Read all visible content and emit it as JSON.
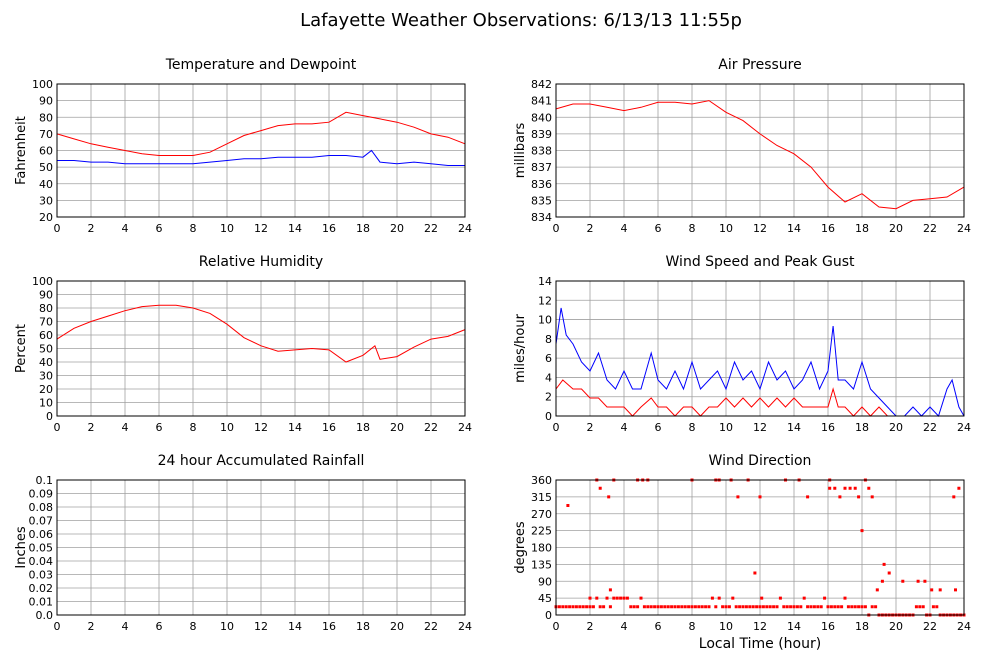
{
  "page": {
    "title": "Lafayette Weather Observations: 6/13/13 11:55p",
    "x_axis_label": "Local Time (hour)"
  },
  "colors": {
    "red": "#ff0000",
    "blue": "#0000ff",
    "grid": "#a0a0a0"
  },
  "chart_data": [
    {
      "id": "temperature",
      "type": "line",
      "title": "Temperature and Dewpoint",
      "ylabel": "Fahrenheit",
      "xlim": [
        0,
        24
      ],
      "ylim": [
        20,
        100
      ],
      "xticks": [
        "0",
        "2",
        "4",
        "6",
        "8",
        "10",
        "12",
        "14",
        "16",
        "18",
        "20",
        "22",
        "24"
      ],
      "yticks": [
        "20",
        "30",
        "40",
        "50",
        "60",
        "70",
        "80",
        "90",
        "100"
      ],
      "grid": true,
      "series": [
        {
          "color": "#ff0000",
          "x": [
            0,
            1,
            2,
            3,
            4,
            5,
            6,
            7,
            8,
            9,
            10,
            11,
            12,
            13,
            14,
            15,
            16,
            17,
            18,
            19,
            20,
            21,
            22,
            23,
            24
          ],
          "values": [
            70,
            67,
            64,
            62,
            60,
            58,
            57,
            57,
            57,
            59,
            64,
            69,
            72,
            75,
            76,
            76,
            77,
            83,
            81,
            79,
            77,
            74,
            70,
            68,
            64
          ]
        },
        {
          "color": "#0000ff",
          "x": [
            0,
            1,
            2,
            3,
            4,
            5,
            6,
            7,
            8,
            9,
            10,
            11,
            12,
            13,
            14,
            15,
            16,
            17,
            18,
            18.5,
            19,
            20,
            21,
            22,
            23,
            24
          ],
          "values": [
            54,
            54,
            53,
            53,
            52,
            52,
            52,
            52,
            52,
            53,
            54,
            55,
            55,
            56,
            56,
            56,
            57,
            57,
            56,
            60,
            53,
            52,
            53,
            52,
            51,
            51
          ]
        }
      ]
    },
    {
      "id": "pressure",
      "type": "line",
      "title": "Air Pressure",
      "ylabel": "millibars",
      "xlim": [
        0,
        24
      ],
      "ylim": [
        834,
        842
      ],
      "xticks": [
        "0",
        "2",
        "4",
        "6",
        "8",
        "10",
        "12",
        "14",
        "16",
        "18",
        "20",
        "22",
        "24"
      ],
      "yticks": [
        "834",
        "835",
        "836",
        "837",
        "838",
        "839",
        "840",
        "841",
        "842"
      ],
      "grid": true,
      "series": [
        {
          "color": "#ff0000",
          "x": [
            0,
            1,
            2,
            3,
            4,
            5,
            6,
            7,
            8,
            9,
            10,
            11,
            12,
            13,
            14,
            15,
            16,
            17,
            18,
            19,
            20,
            21,
            22,
            23,
            24
          ],
          "values": [
            840.5,
            840.8,
            840.8,
            840.6,
            840.4,
            840.6,
            840.9,
            840.9,
            840.8,
            841,
            840.3,
            839.8,
            839,
            838.3,
            837.8,
            837,
            835.8,
            834.9,
            835.4,
            834.6,
            834.5,
            835,
            835.1,
            835.2,
            835.8
          ]
        }
      ]
    },
    {
      "id": "humidity",
      "type": "line",
      "title": "Relative Humidity",
      "ylabel": "Percent",
      "xlim": [
        0,
        24
      ],
      "ylim": [
        0,
        100
      ],
      "xticks": [
        "0",
        "2",
        "4",
        "6",
        "8",
        "10",
        "12",
        "14",
        "16",
        "18",
        "20",
        "22",
        "24"
      ],
      "yticks": [
        "0",
        "10",
        "20",
        "30",
        "40",
        "50",
        "60",
        "70",
        "80",
        "90",
        "100"
      ],
      "grid": true,
      "series": [
        {
          "color": "#ff0000",
          "x": [
            0,
            1,
            2,
            3,
            4,
            5,
            6,
            7,
            8,
            9,
            10,
            11,
            12,
            13,
            14,
            15,
            16,
            17,
            18,
            18.7,
            19,
            20,
            21,
            22,
            23,
            24
          ],
          "values": [
            57,
            65,
            70,
            74,
            78,
            81,
            82,
            82,
            80,
            76,
            68,
            58,
            52,
            48,
            49,
            50,
            49,
            40,
            45,
            52,
            42,
            44,
            51,
            57,
            59,
            64
          ]
        }
      ]
    },
    {
      "id": "wind",
      "type": "line",
      "title": "Wind Speed and Peak Gust",
      "ylabel": "miles/hour",
      "xlim": [
        0,
        24
      ],
      "ylim": [
        0,
        15
      ],
      "xticks": [
        "0",
        "2",
        "4",
        "6",
        "8",
        "10",
        "12",
        "14",
        "16",
        "18",
        "20",
        "22",
        "24"
      ],
      "yticks": [
        "0",
        "2",
        "4",
        "6",
        "8",
        "10",
        "12",
        "14"
      ],
      "grid": true,
      "series": [
        {
          "color": "#0000ff",
          "x": [
            0,
            0.3,
            0.6,
            1,
            1.5,
            2,
            2.5,
            3,
            3.5,
            4,
            4.5,
            5,
            5.6,
            6,
            6.5,
            7,
            7.5,
            8,
            8.5,
            9,
            9.5,
            10,
            10.5,
            11,
            11.5,
            12,
            12.5,
            13,
            13.5,
            14,
            14.5,
            15,
            15.5,
            16,
            16.3,
            16.6,
            17,
            17.5,
            18,
            18.5,
            19,
            19.5,
            20,
            20.5,
            21,
            21.5,
            22,
            22.5,
            23,
            23.3,
            23.7,
            24
          ],
          "values": [
            8,
            12,
            9,
            8,
            6,
            5,
            7,
            4,
            3,
            5,
            3,
            3,
            7,
            4,
            3,
            5,
            3,
            6,
            3,
            4,
            5,
            3,
            6,
            4,
            5,
            3,
            6,
            4,
            5,
            3,
            4,
            6,
            3,
            5,
            10,
            4,
            4,
            3,
            6,
            3,
            2,
            1,
            0,
            0,
            1,
            0,
            1,
            0,
            3,
            4,
            1,
            0
          ]
        },
        {
          "color": "#ff0000",
          "x": [
            0,
            0.4,
            1,
            1.5,
            2,
            2.5,
            3,
            3.5,
            4,
            4.5,
            5,
            5.6,
            6,
            6.5,
            7,
            7.5,
            8,
            8.5,
            9,
            9.5,
            10,
            10.5,
            11,
            11.5,
            12,
            12.5,
            13,
            13.5,
            14,
            14.5,
            15,
            15.5,
            16,
            16.3,
            16.6,
            17,
            17.5,
            18,
            18.5,
            19,
            19.5,
            20,
            21,
            22,
            23,
            24
          ],
          "values": [
            3,
            4,
            3,
            3,
            2,
            2,
            1,
            1,
            1,
            0,
            1,
            2,
            1,
            1,
            0,
            1,
            1,
            0,
            1,
            1,
            2,
            1,
            2,
            1,
            2,
            1,
            2,
            1,
            2,
            1,
            1,
            1,
            1,
            3,
            1,
            1,
            0,
            1,
            0,
            1,
            0,
            0,
            0,
            0,
            0,
            0
          ]
        }
      ]
    },
    {
      "id": "rainfall",
      "type": "line",
      "title": "24 hour Accumulated Rainfall",
      "ylabel": "Inches",
      "xlim": [
        0,
        24
      ],
      "ylim": [
        0,
        0.1
      ],
      "xticks": [
        "0",
        "2",
        "4",
        "6",
        "8",
        "10",
        "12",
        "14",
        "16",
        "18",
        "20",
        "22",
        "24"
      ],
      "yticks": [
        "0.0",
        "0.01",
        "0.02",
        "0.03",
        "0.04",
        "0.05",
        "0.06",
        "0.07",
        "0.08",
        "0.09",
        "0.1"
      ],
      "grid": true,
      "series": [
        {
          "color": "#ff0000",
          "x": [
            0,
            24
          ],
          "values": [
            0,
            0
          ]
        }
      ]
    },
    {
      "id": "direction",
      "type": "scatter",
      "title": "Wind Direction",
      "ylabel": "degrees",
      "xlim": [
        0,
        24
      ],
      "ylim": [
        0,
        360
      ],
      "xticks": [
        "0",
        "2",
        "4",
        "6",
        "8",
        "10",
        "12",
        "14",
        "16",
        "18",
        "20",
        "22",
        "24"
      ],
      "yticks": [
        "0",
        "45",
        "90",
        "135",
        "180",
        "225",
        "270",
        "315",
        "360"
      ],
      "grid": true,
      "series": [
        {
          "color": "#ff0000",
          "x": [
            0,
            0.2,
            0.4,
            0.6,
            0.8,
            1,
            1.2,
            1.4,
            1.6,
            1.8,
            2,
            2.2,
            2.4,
            2.6,
            2.8,
            3,
            3.2,
            3.4,
            3.6,
            3.8,
            4,
            4.2,
            4.4,
            4.6,
            4.8,
            5,
            5.2,
            5.4,
            5.6,
            5.8,
            6,
            6.2,
            6.4,
            6.6,
            6.8,
            7,
            7.2,
            7.4,
            7.6,
            7.8,
            8,
            8.2,
            8.4,
            8.6,
            8.8,
            9,
            9.2,
            9.4,
            9.6,
            9.8,
            10,
            10.2,
            10.4,
            10.6,
            10.8,
            11,
            11.2,
            11.4,
            11.6,
            11.8,
            12,
            12.2,
            12.4,
            12.6,
            12.8,
            13,
            13.2,
            13.4,
            13.6,
            13.8,
            14,
            14.2,
            14.4,
            14.6,
            14.8,
            15,
            15.2,
            15.4,
            15.6,
            15.8,
            16,
            16.2,
            16.4,
            16.6,
            16.8,
            17,
            17.2,
            17.4,
            17.6,
            17.8,
            18,
            18.2,
            18.4,
            18.6,
            18.8,
            19,
            19.2,
            19.4,
            19.6,
            19.8,
            20,
            20.2,
            20.4,
            20.6,
            20.8,
            21,
            21.2,
            21.4,
            21.6,
            21.8,
            22,
            22.2,
            22.4,
            22.6,
            22.8,
            23,
            23.2,
            23.4,
            23.6,
            23.8,
            24,
            0.7,
            2.4,
            2.6,
            3.1,
            3.4,
            4.8,
            5.1,
            5.4,
            8.0,
            9.4,
            9.6,
            10.3,
            10.7,
            11.3,
            12.0,
            13.5,
            14.3,
            14.8,
            16.1,
            16.4,
            16.7,
            17.0,
            17.3,
            17.6,
            17.8,
            18.2,
            18.4,
            18.6,
            18.9,
            19.2,
            19.6,
            20.4,
            21.3,
            21.7,
            22.1,
            22.6,
            23.4,
            23.7,
            16.1,
            18.0,
            11.7,
            12.1,
            3.2,
            2.0,
            19.3,
            23.5
          ],
          "values": [
            22,
            22,
            22,
            22,
            22,
            22,
            22,
            22,
            22,
            22,
            22,
            22,
            45,
            22,
            22,
            45,
            22,
            45,
            45,
            45,
            45,
            45,
            22,
            22,
            22,
            45,
            22,
            22,
            22,
            22,
            22,
            22,
            22,
            22,
            22,
            22,
            22,
            22,
            22,
            22,
            22,
            22,
            22,
            22,
            22,
            22,
            45,
            22,
            45,
            22,
            22,
            22,
            45,
            22,
            22,
            22,
            22,
            22,
            22,
            22,
            22,
            22,
            22,
            22,
            22,
            22,
            45,
            22,
            22,
            22,
            22,
            22,
            22,
            45,
            22,
            22,
            22,
            22,
            22,
            45,
            22,
            22,
            22,
            22,
            22,
            45,
            22,
            22,
            22,
            22,
            22,
            22,
            0,
            22,
            22,
            0,
            0,
            0,
            0,
            0,
            0,
            0,
            0,
            0,
            0,
            0,
            22,
            22,
            22,
            0,
            0,
            22,
            22,
            0,
            0,
            0,
            0,
            0,
            0,
            0,
            0,
            292,
            360,
            338,
            315,
            360,
            360,
            360,
            360,
            360,
            360,
            360,
            360,
            315,
            360,
            315,
            360,
            360,
            315,
            338,
            338,
            315,
            338,
            338,
            338,
            315,
            360,
            338,
            315,
            67,
            90,
            112,
            90,
            90,
            90,
            67,
            67,
            315,
            338,
            360,
            225,
            112,
            45,
            67,
            45,
            135,
            67
          ]
        }
      ]
    }
  ]
}
